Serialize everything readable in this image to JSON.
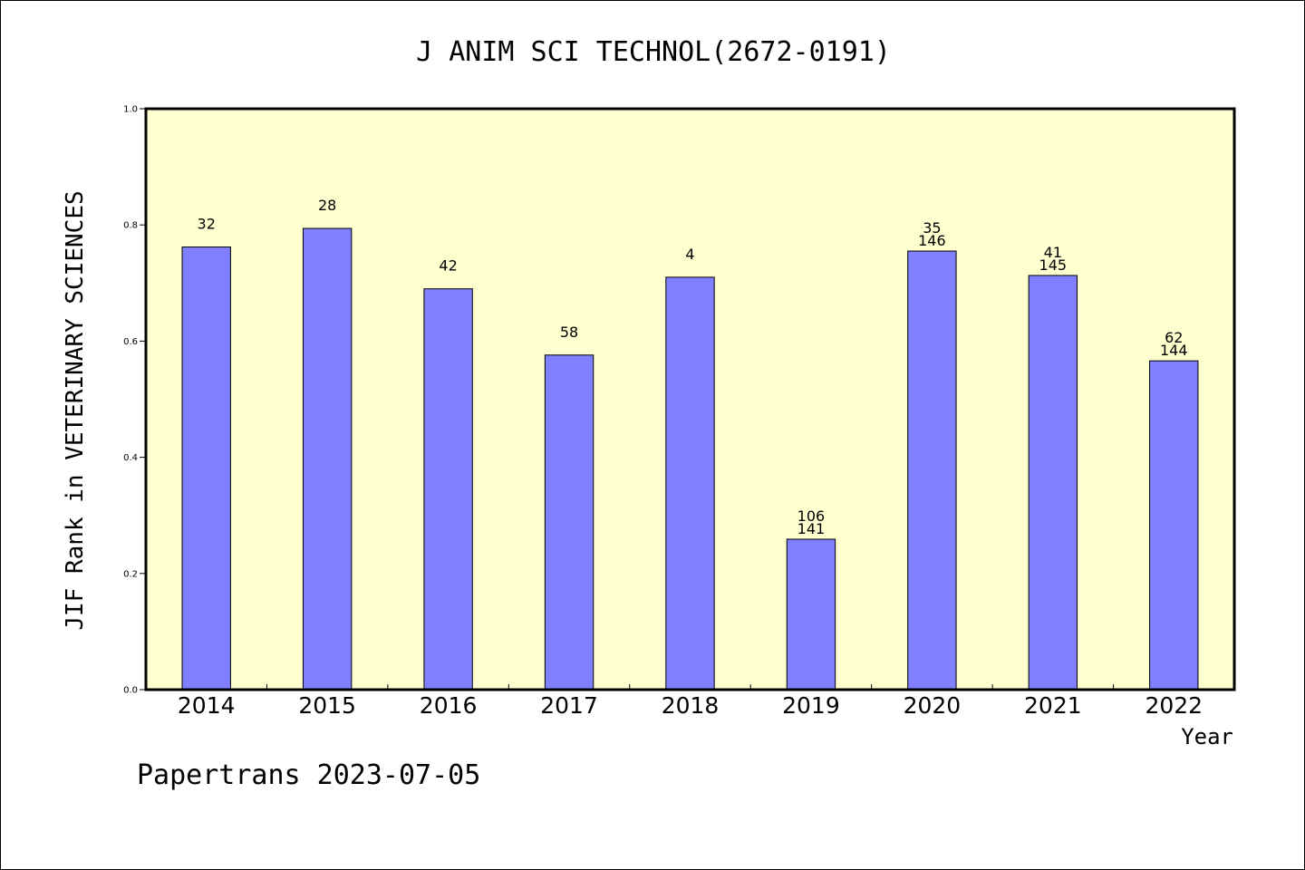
{
  "chart_data": {
    "type": "bar",
    "title": "J ANIM SCI TECHNOL(2672-0191)",
    "ylabel": "JIF Rank in VETERINARY SCIENCES",
    "xlabel": "Year",
    "ylim": [
      0,
      1.0
    ],
    "yticks": [
      "0.0",
      "0.2",
      "0.4",
      "0.6",
      "0.8",
      "1.0"
    ],
    "categories": [
      "2014",
      "2015",
      "2016",
      "2017",
      "2018",
      "2019",
      "2020",
      "2021",
      "2022"
    ],
    "values": [
      0.762,
      0.794,
      0.69,
      0.576,
      0.71,
      0.259,
      0.755,
      0.713,
      0.566
    ],
    "bar_labels": [
      [
        "32"
      ],
      [
        "28"
      ],
      [
        "42"
      ],
      [
        "58"
      ],
      [
        "4"
      ],
      [
        "106",
        "141"
      ],
      [
        "35",
        "146"
      ],
      [
        "41",
        "145"
      ],
      [
        "62",
        "144"
      ]
    ],
    "grid": false,
    "colors": {
      "bar": "#8080ff",
      "plot_background": "#ffffd0",
      "axis": "#000000"
    }
  },
  "footer": {
    "watermark": "Papertrans 2023-07-05"
  }
}
